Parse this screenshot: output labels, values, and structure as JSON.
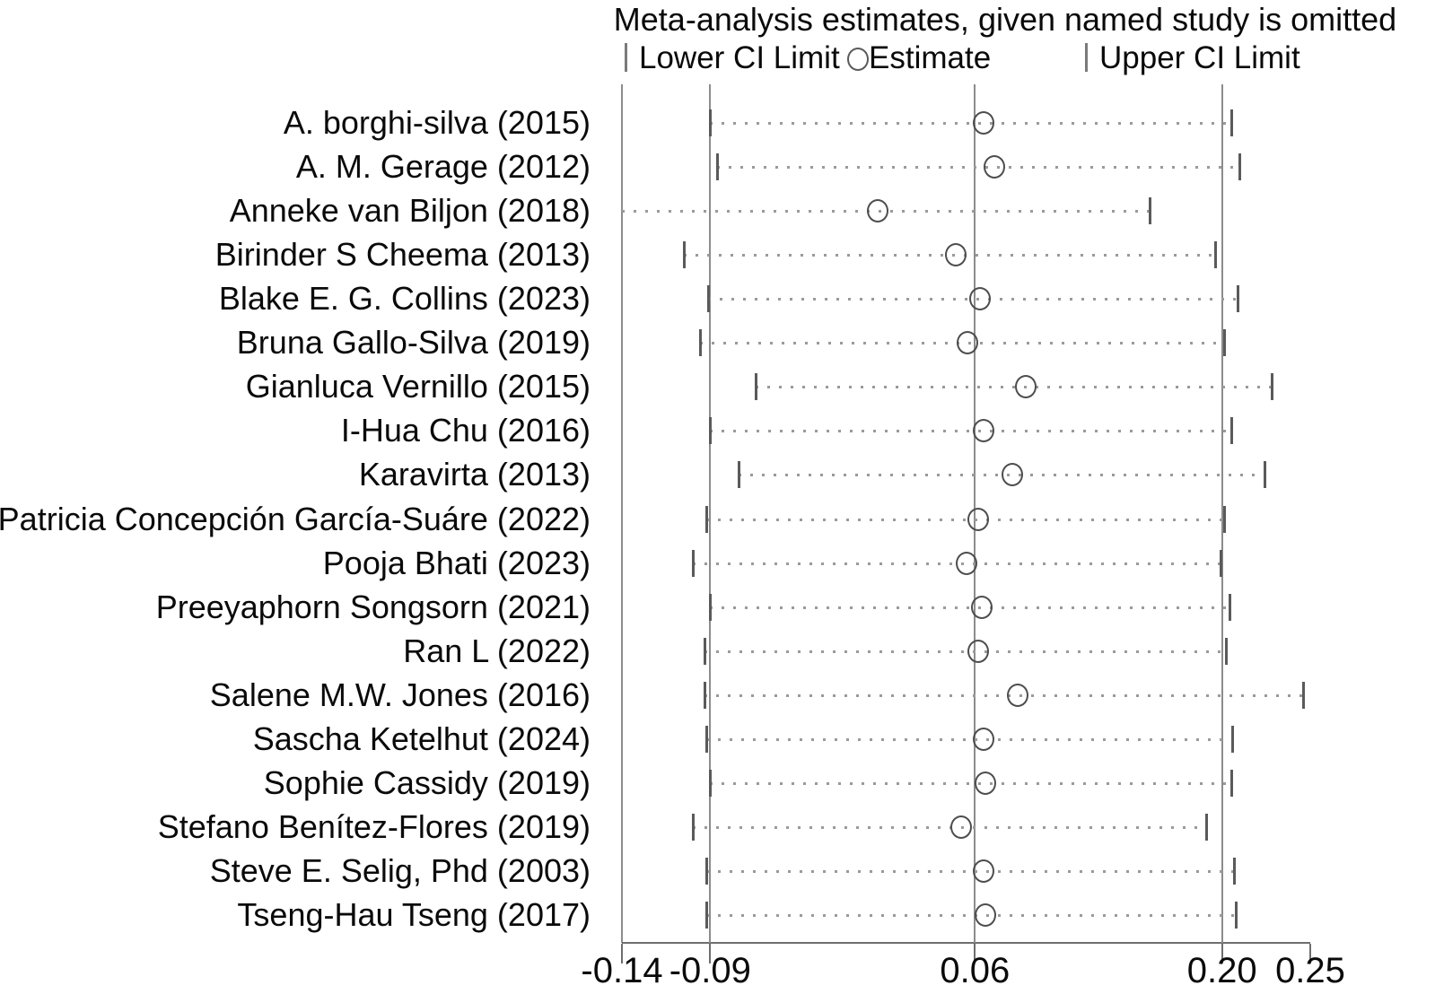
{
  "title": "Meta-analysis estimates, given named study is omitted",
  "legend": {
    "lower_label": "Lower CI Limit",
    "estimate_label": "Estimate",
    "upper_label": "Upper CI Limit"
  },
  "colors": {
    "text": "#0a0a0a",
    "reference_line": "#8c8c8c",
    "dotted_line": "#9a9a9a",
    "ci_tick": "#5a5a5a",
    "circle_outline": "#4d4d4d",
    "axis": "#6e6e6e"
  },
  "chart_data": {
    "type": "scatter",
    "subtype": "leave-one-out-forest-plot",
    "title": "Meta-analysis estimates, given named study is omitted",
    "xlabel": "",
    "ylabel": "",
    "grid": false,
    "legend_position": "top",
    "x_axis": {
      "range": [
        -0.14,
        0.25
      ],
      "ticks": [
        -0.14,
        -0.09,
        0.06,
        0.2,
        0.25
      ],
      "tick_labels": [
        "-0.14",
        "-0.09",
        "0.06",
        "0.20",
        "0.25"
      ]
    },
    "reference_lines": [
      -0.09,
      0.06,
      0.2
    ],
    "studies": [
      {
        "label": "A. borghi-silva (2015)",
        "lower": -0.09,
        "estimate": 0.065,
        "upper": 0.205,
        "lower_offscale": false
      },
      {
        "label": "A. M. Gerage (2012)",
        "lower": -0.086,
        "estimate": 0.071,
        "upper": 0.21,
        "lower_offscale": false
      },
      {
        "label": "Anneke van Biljon (2018)",
        "lower": -0.14,
        "estimate": 0.005,
        "upper": 0.159,
        "lower_offscale": true
      },
      {
        "label": "Birinder S Cheema (2013)",
        "lower": -0.105,
        "estimate": 0.049,
        "upper": 0.196,
        "lower_offscale": false
      },
      {
        "label": "Blake E. G. Collins (2023)",
        "lower": -0.091,
        "estimate": 0.063,
        "upper": 0.209,
        "lower_offscale": false
      },
      {
        "label": "Bruna Gallo-Silva (2019)",
        "lower": -0.096,
        "estimate": 0.056,
        "upper": 0.201,
        "lower_offscale": false
      },
      {
        "label": "Gianluca Vernillo (2015)",
        "lower": -0.064,
        "estimate": 0.089,
        "upper": 0.228,
        "lower_offscale": false
      },
      {
        "label": "I-Hua Chu (2016)",
        "lower": -0.09,
        "estimate": 0.065,
        "upper": 0.205,
        "lower_offscale": false
      },
      {
        "label": "Karavirta (2013)",
        "lower": -0.074,
        "estimate": 0.081,
        "upper": 0.224,
        "lower_offscale": false
      },
      {
        "label": "Patricia Concepción García-Suáre (2022)",
        "lower": -0.092,
        "estimate": 0.062,
        "upper": 0.201,
        "lower_offscale": false
      },
      {
        "label": "Pooja Bhati (2023)",
        "lower": -0.1,
        "estimate": 0.055,
        "upper": 0.199,
        "lower_offscale": false
      },
      {
        "label": "Preeyaphorn Songsorn (2021)",
        "lower": -0.09,
        "estimate": 0.064,
        "upper": 0.204,
        "lower_offscale": false
      },
      {
        "label": "Ran L (2022)",
        "lower": -0.093,
        "estimate": 0.062,
        "upper": 0.202,
        "lower_offscale": false
      },
      {
        "label": "Salene M.W. Jones (2016)",
        "lower": -0.093,
        "estimate": 0.084,
        "upper": 0.246,
        "lower_offscale": false
      },
      {
        "label": "Sascha Ketelhut (2024)",
        "lower": -0.092,
        "estimate": 0.065,
        "upper": 0.206,
        "lower_offscale": false
      },
      {
        "label": "Sophie Cassidy (2019)",
        "lower": -0.09,
        "estimate": 0.066,
        "upper": 0.205,
        "lower_offscale": false
      },
      {
        "label": "Stefano Benítez-Flores (2019)",
        "lower": -0.1,
        "estimate": 0.052,
        "upper": 0.191,
        "lower_offscale": false
      },
      {
        "label": "Steve E. Selig, Phd (2003)",
        "lower": -0.092,
        "estimate": 0.065,
        "upper": 0.207,
        "lower_offscale": false
      },
      {
        "label": "Tseng-Hau Tseng (2017)",
        "lower": -0.092,
        "estimate": 0.066,
        "upper": 0.208,
        "lower_offscale": false
      }
    ]
  }
}
